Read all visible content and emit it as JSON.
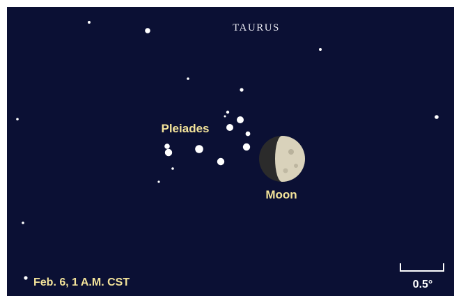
{
  "constellation": "TAURUS",
  "labels": {
    "cluster": "Pleiades",
    "moon": "Moon"
  },
  "caption": "Feb. 6, 1 A.M. CST",
  "scale": "0.5°"
}
